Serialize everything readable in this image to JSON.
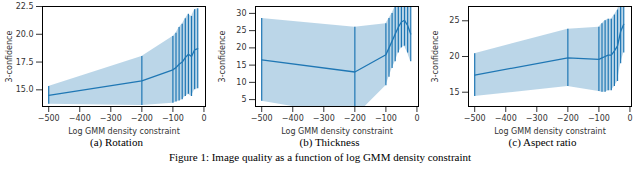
{
  "caption": "Figure 1: Image quality as a function of log GMM density constraint",
  "chart_data": [
    {
      "type": "line",
      "title": "(a) Rotation",
      "x_label": "Log GMM density constraint",
      "y_label": "3-confidence",
      "x": [
        -500,
        -200,
        -100,
        -90,
        -80,
        -70,
        -60,
        -50,
        -40,
        -30,
        -20
      ],
      "series": [
        {
          "color": "#1f77b4",
          "values": [
            14.5,
            15.8,
            16.8,
            17.0,
            17.3,
            17.5,
            17.9,
            18.2,
            18.0,
            18.6,
            18.7
          ],
          "errors": [
            0.8,
            2.2,
            3.0,
            3.1,
            3.3,
            3.4,
            3.5,
            3.6,
            3.6,
            3.6,
            3.6
          ]
        }
      ],
      "xlim": [
        -520,
        5
      ],
      "xticks": [
        {
          "value": -500,
          "label": "−500"
        },
        {
          "value": -400,
          "label": "−400"
        },
        {
          "value": -300,
          "label": "−300"
        },
        {
          "value": -200,
          "label": "−200"
        },
        {
          "value": -100,
          "label": "−100"
        },
        0
      ],
      "ylim": [
        13.5,
        22.5
      ],
      "yticks": [
        {
          "value": 15,
          "label": "15.0"
        },
        {
          "value": 17.5,
          "label": "17.5"
        },
        {
          "value": 20,
          "label": "20.0"
        },
        {
          "value": 22.5,
          "label": "22.5"
        }
      ],
      "grid": false
    },
    {
      "type": "line",
      "title": "(b) Thickness",
      "x_label": "Log GMM density constraint",
      "y_label": "3-confidence",
      "x": [
        -500,
        -200,
        -100,
        -90,
        -80,
        -70,
        -60,
        -50,
        -40,
        -30,
        -20
      ],
      "series": [
        {
          "color": "#1f77b4",
          "values": [
            16.5,
            13.0,
            18.0,
            20.0,
            22.0,
            24.0,
            26.0,
            27.5,
            28.0,
            26.5,
            24.0
          ],
          "errors": [
            12.0,
            13.0,
            9.0,
            8.5,
            8.0,
            8.0,
            7.5,
            7.5,
            7.5,
            8.0,
            8.0
          ]
        }
      ],
      "xlim": [
        -520,
        5
      ],
      "xticks": [
        {
          "value": -500,
          "label": "−500"
        },
        {
          "value": -400,
          "label": "−400"
        },
        {
          "value": -300,
          "label": "−300"
        },
        {
          "value": -200,
          "label": "−200"
        },
        {
          "value": -100,
          "label": "−100"
        },
        0
      ],
      "ylim": [
        3,
        32
      ],
      "yticks": [
        5,
        10,
        15,
        20,
        25,
        30
      ],
      "grid": false
    },
    {
      "type": "line",
      "title": "(c) Aspect ratio",
      "x_label": "Log GMM density constraint",
      "y_label": "3-confidence",
      "x": [
        -500,
        -200,
        -100,
        -90,
        -80,
        -70,
        -60,
        -50,
        -40,
        -30,
        -20
      ],
      "series": [
        {
          "color": "#1f77b4",
          "values": [
            17.4,
            19.8,
            19.6,
            19.8,
            20.0,
            20.2,
            20.2,
            20.8,
            21.5,
            23.5,
            24.5
          ],
          "errors": [
            3.0,
            4.0,
            4.5,
            4.8,
            5.0,
            5.0,
            5.0,
            5.0,
            5.0,
            4.5,
            4.0
          ]
        }
      ],
      "xlim": [
        -520,
        5
      ],
      "xticks": [
        {
          "value": -500,
          "label": "−500"
        },
        {
          "value": -400,
          "label": "−400"
        },
        {
          "value": -300,
          "label": "−300"
        },
        {
          "value": -200,
          "label": "−200"
        },
        {
          "value": -100,
          "label": "−100"
        },
        0
      ],
      "ylim": [
        13,
        27
      ],
      "yticks": [
        15,
        20,
        25
      ],
      "grid": false
    }
  ]
}
